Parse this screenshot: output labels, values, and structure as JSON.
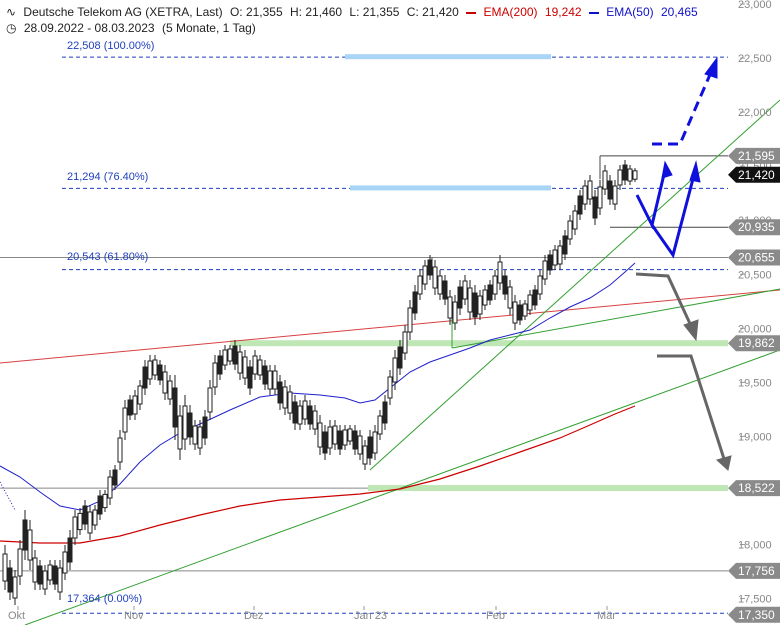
{
  "header": {
    "line1": {
      "icon": "line-chart-icon",
      "instrument": "Deutsche Telekom AG (XETRA, Last)",
      "open": "O: 21,355",
      "high": "H: 21,460",
      "low": "L: 21,355",
      "close": "C: 21,420",
      "ema200_label": "EMA(200)",
      "ema200_value": "19,242",
      "ema50_label": "EMA(50)",
      "ema50_value": "20,465"
    },
    "line2": {
      "icon": "clock-icon",
      "period": "28.09.2022 - 08.03.2023",
      "range": "(5 Monate, 1 Tag)"
    }
  },
  "colors": {
    "candle": "#222222",
    "ema200": "#cc0000",
    "ema50": "#2020cc",
    "trend": "#33a033",
    "fib": "#1f3fbf",
    "zone_blue": "#a8d4f5",
    "zone_green": "#bfe6b5",
    "arrow_blue": "#1010dd",
    "arrow_gray": "#666666"
  },
  "chart_data": {
    "type": "candlestick",
    "y_ticks": [
      "23,000",
      "22,500",
      "22,000",
      "21,500",
      "21,000",
      "20,500",
      "20,000",
      "19,500",
      "19,000",
      "18,500",
      "18,000",
      "17,500"
    ],
    "y_tick_values": [
      23000,
      22500,
      22000,
      21500,
      21000,
      20500,
      20000,
      19500,
      19000,
      18500,
      18000,
      17500
    ],
    "x_ticks": [
      "Okt",
      "Nov",
      "Dez",
      "Jan 23",
      "Feb",
      "Mär"
    ],
    "fib_levels": [
      {
        "label": "22,508 (100.00%)",
        "value": 22508
      },
      {
        "label": "21,294 (76.40%)",
        "value": 21294
      },
      {
        "label": "20,543 (61.80%)",
        "value": 20543
      },
      {
        "label": "17,364 (0.00%)",
        "value": 17364
      }
    ],
    "price_labels": [
      {
        "text": "21,595",
        "value": 21595,
        "style": "gray"
      },
      {
        "text": "21,420",
        "value": 21420,
        "style": "black"
      },
      {
        "text": "20,935",
        "value": 20935,
        "style": "gray"
      },
      {
        "text": "20,655",
        "value": 20655,
        "style": "gray"
      },
      {
        "text": "19,862",
        "value": 19862,
        "style": "gray"
      },
      {
        "text": "18,522",
        "value": 18522,
        "style": "gray"
      },
      {
        "text": "17,756",
        "value": 17756,
        "style": "gray"
      },
      {
        "text": "17,350",
        "value": 17350,
        "style": "gray"
      }
    ],
    "series": [
      {
        "name": "EMA(200)",
        "last": 19242
      },
      {
        "name": "EMA(50)",
        "last": 20465
      }
    ],
    "last_close": 21420
  }
}
